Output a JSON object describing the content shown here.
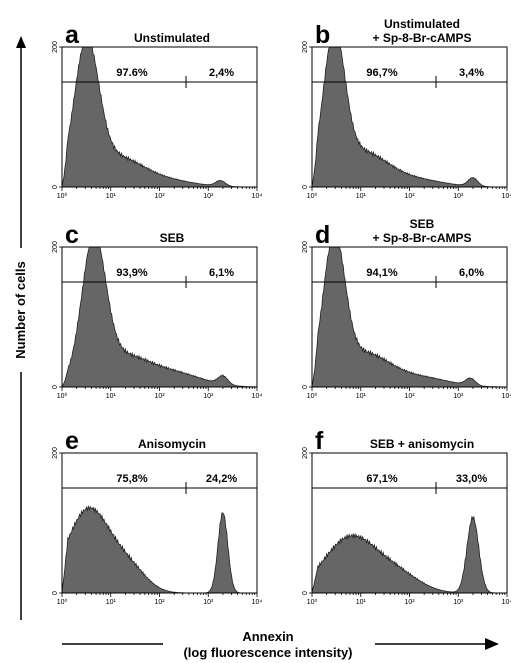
{
  "figure": {
    "y_axis_title": "Number of cells",
    "x_axis_title_line1": "Annexin",
    "x_axis_title_line2": "(log fluorescence intensity)"
  },
  "chart_data": [
    {
      "panel": "a",
      "type": "area",
      "title_lines": [
        "Unstimulated"
      ],
      "gate_labels": [
        "97.6%",
        "2,4%"
      ],
      "x_scale": "log",
      "xlim": [
        1,
        10000
      ],
      "x_ticks": [
        "10⁰",
        "10¹",
        "10²",
        "10³",
        "10⁴"
      ],
      "ylim": [
        0,
        200
      ],
      "y_ticks": [
        "0",
        "200"
      ],
      "gate_y": 150,
      "gate_split_x": 350,
      "components": [
        {
          "center_log": 0.5,
          "sigma": 0.25,
          "height": 190
        },
        {
          "center_log": 1.1,
          "sigma": 0.55,
          "height": 42
        },
        {
          "center_log": 2.2,
          "sigma": 0.55,
          "height": 8
        },
        {
          "center_log": 3.25,
          "sigma": 0.1,
          "height": 8
        }
      ]
    },
    {
      "panel": "b",
      "type": "area",
      "title_lines": [
        "Unstimulated",
        "+ Sp-8-Br-cAMPS"
      ],
      "gate_labels": [
        "96,7%",
        "3,4%"
      ],
      "x_scale": "log",
      "xlim": [
        1,
        10000
      ],
      "x_ticks": [
        "10⁰",
        "10¹",
        "10²",
        "10³",
        "10⁴"
      ],
      "ylim": [
        0,
        200
      ],
      "y_ticks": [
        "0",
        "200"
      ],
      "gate_y": 150,
      "gate_split_x": 350,
      "components": [
        {
          "center_log": 0.45,
          "sigma": 0.22,
          "height": 195
        },
        {
          "center_log": 1.0,
          "sigma": 0.55,
          "height": 50
        },
        {
          "center_log": 2.2,
          "sigma": 0.55,
          "height": 9
        },
        {
          "center_log": 3.3,
          "sigma": 0.1,
          "height": 12
        }
      ]
    },
    {
      "panel": "c",
      "type": "area",
      "title_lines": [
        "SEB"
      ],
      "gate_labels": [
        "93,9%",
        "6,1%"
      ],
      "x_scale": "log",
      "xlim": [
        1,
        10000
      ],
      "x_ticks": [
        "10⁰",
        "10¹",
        "10²",
        "10³",
        "10⁴"
      ],
      "ylim": [
        0,
        200
      ],
      "y_ticks": [
        "0",
        "200"
      ],
      "gate_y": 150,
      "gate_split_x": 350,
      "components": [
        {
          "center_log": 0.65,
          "sigma": 0.24,
          "height": 190
        },
        {
          "center_log": 1.2,
          "sigma": 0.6,
          "height": 45
        },
        {
          "center_log": 2.4,
          "sigma": 0.55,
          "height": 16
        },
        {
          "center_log": 3.3,
          "sigma": 0.1,
          "height": 12
        }
      ]
    },
    {
      "panel": "d",
      "type": "area",
      "title_lines": [
        "SEB",
        "+ Sp-8-Br-cAMPS"
      ],
      "gate_labels": [
        "94,1%",
        "6,0%"
      ],
      "x_scale": "log",
      "xlim": [
        1,
        10000
      ],
      "x_ticks": [
        "10⁰",
        "10¹",
        "10²",
        "10³",
        "10⁴"
      ],
      "ylim": [
        0,
        200
      ],
      "y_ticks": [
        "0",
        "200"
      ],
      "gate_y": 150,
      "gate_split_x": 350,
      "components": [
        {
          "center_log": 0.45,
          "sigma": 0.22,
          "height": 195
        },
        {
          "center_log": 1.05,
          "sigma": 0.55,
          "height": 48
        },
        {
          "center_log": 2.3,
          "sigma": 0.55,
          "height": 12
        },
        {
          "center_log": 3.25,
          "sigma": 0.1,
          "height": 10
        }
      ]
    },
    {
      "panel": "e",
      "type": "area",
      "title_lines": [
        "Anisomycin"
      ],
      "gate_labels": [
        "75,8%",
        "24,2%"
      ],
      "x_scale": "log",
      "xlim": [
        1,
        10000
      ],
      "x_ticks": [
        "10⁰",
        "10¹",
        "10²",
        "10³",
        "10⁴"
      ],
      "ylim": [
        0,
        200
      ],
      "y_ticks": [
        "0",
        "200"
      ],
      "gate_y": 150,
      "gate_split_x": 350,
      "components": [
        {
          "center_log": 0.55,
          "sigma": 0.45,
          "height": 120
        },
        {
          "center_log": 1.4,
          "sigma": 0.35,
          "height": 30
        },
        {
          "center_log": 3.3,
          "sigma": 0.1,
          "height": 115
        }
      ]
    },
    {
      "panel": "f",
      "type": "area",
      "title_lines": [
        "SEB + anisomycin"
      ],
      "gate_labels": [
        "67,1%",
        "33,0%"
      ],
      "x_scale": "log",
      "xlim": [
        1,
        10000
      ],
      "x_ticks": [
        "10⁰",
        "10¹",
        "10²",
        "10³",
        "10⁴"
      ],
      "ylim": [
        0,
        200
      ],
      "y_ticks": [
        "0",
        "200"
      ],
      "gate_y": 150,
      "gate_split_x": 350,
      "components": [
        {
          "center_log": 0.8,
          "sigma": 0.55,
          "height": 80
        },
        {
          "center_log": 1.8,
          "sigma": 0.45,
          "height": 22
        },
        {
          "center_log": 3.3,
          "sigma": 0.12,
          "height": 108
        }
      ]
    }
  ]
}
